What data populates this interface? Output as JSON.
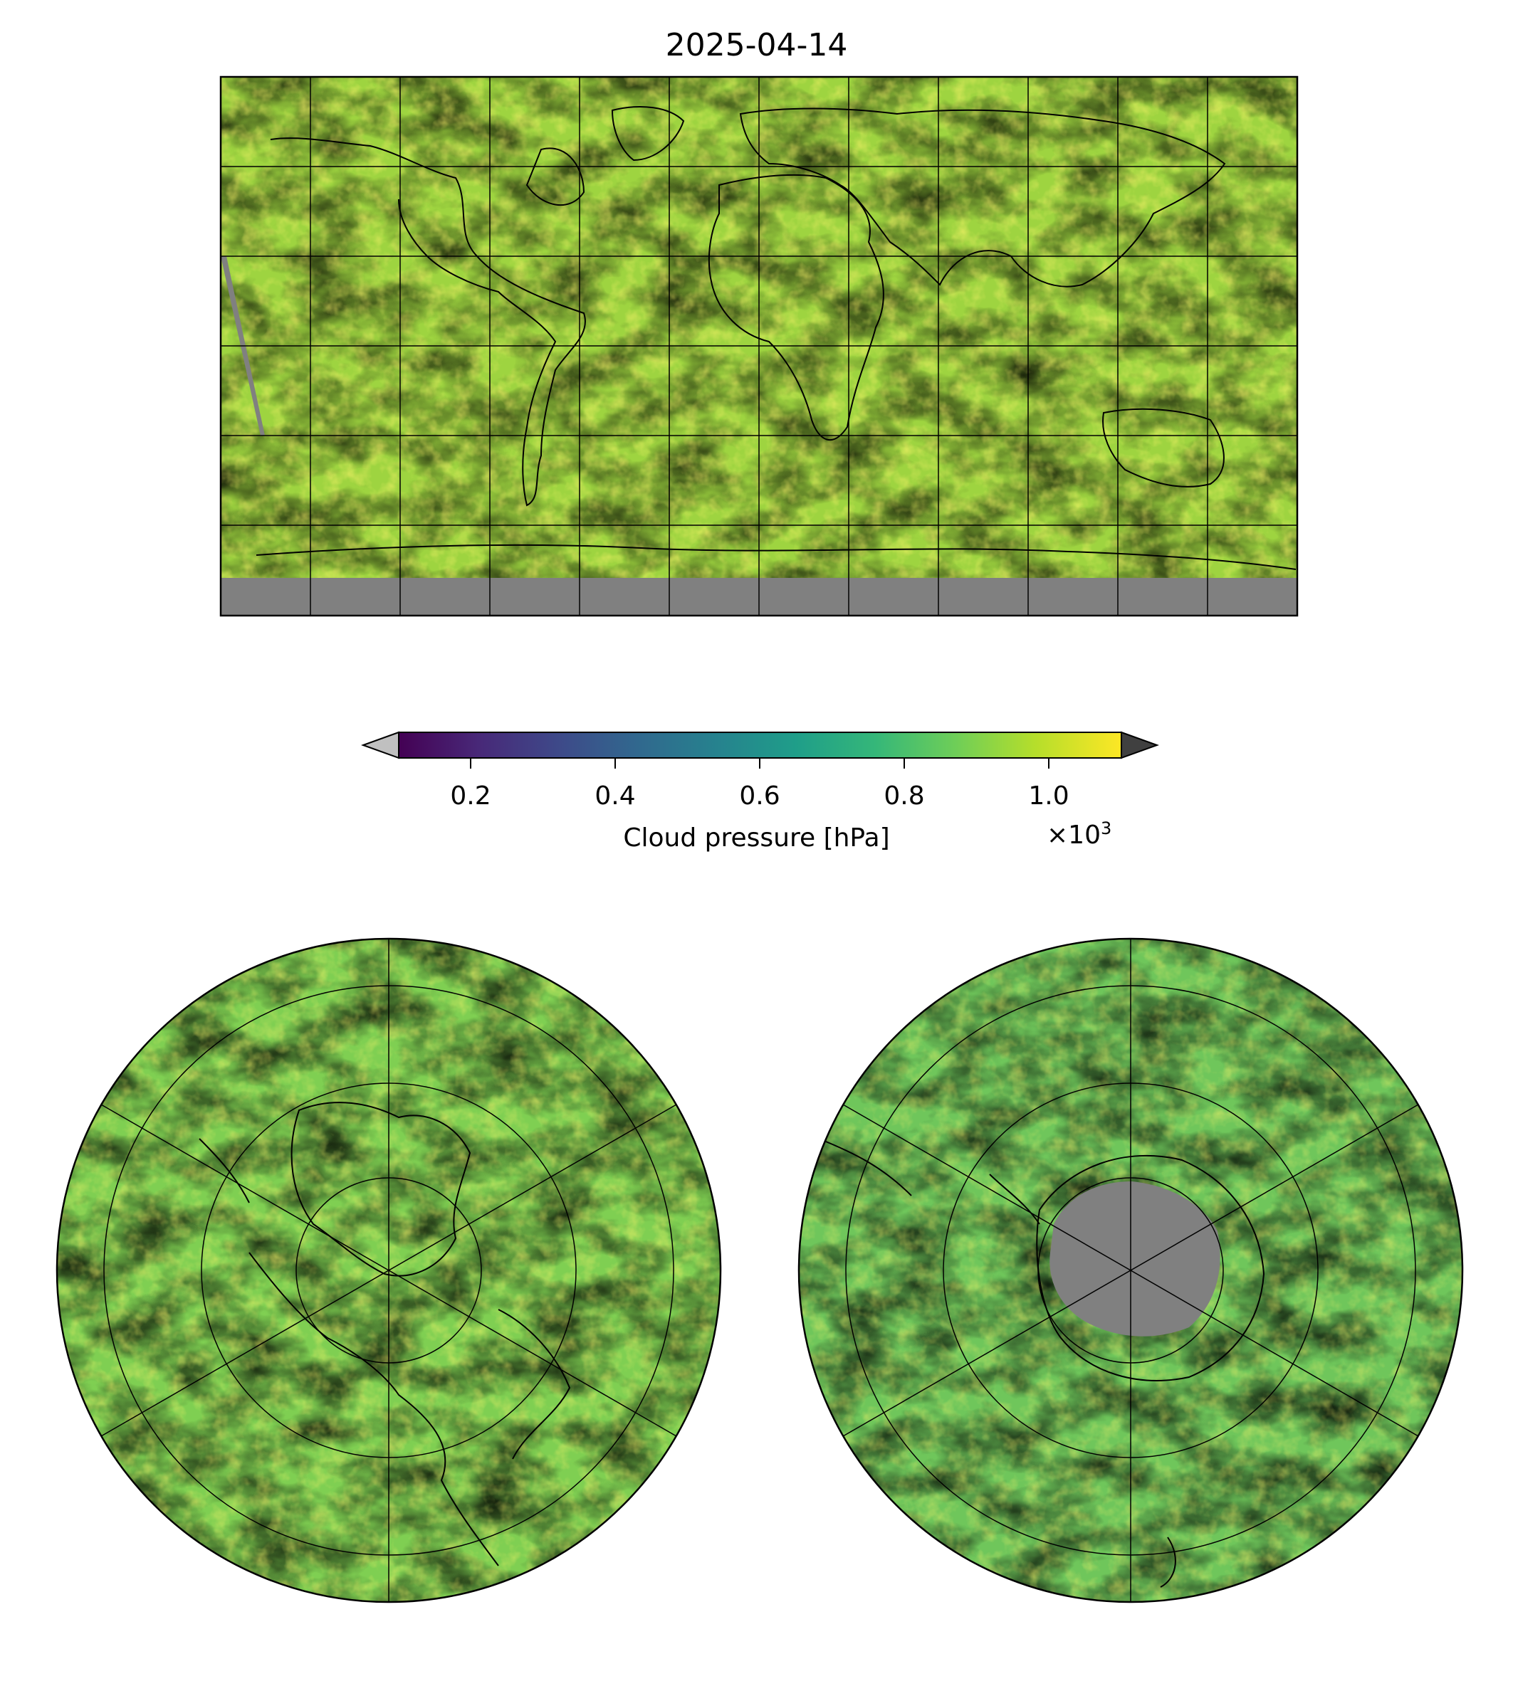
{
  "figure": {
    "title": "2025-04-14"
  },
  "colorbar": {
    "label": "Cloud pressure [hPa]",
    "multiplier_base": "×10",
    "multiplier_exp": "3",
    "ticks": [
      "0.2",
      "0.4",
      "0.6",
      "0.8",
      "1.0"
    ],
    "tick_values": [
      0.2,
      0.4,
      0.6,
      0.8,
      1.0
    ],
    "range": [
      0.1,
      1.1
    ],
    "extend": "both",
    "under_color": "#c0c0c0",
    "over_color": "#404040",
    "colormap": "viridis",
    "colormap_stops": [
      "#440154",
      "#482878",
      "#3e4989",
      "#31688e",
      "#26828e",
      "#1f9e89",
      "#35b779",
      "#6ece58",
      "#b5de2b",
      "#fde725"
    ]
  },
  "panels": {
    "global": {
      "projection": "plate-carree",
      "gridlines": "30 degree",
      "missing_color": "#808080"
    },
    "north_polar": {
      "projection": "north-polar-stereographic",
      "gridlines": "lat rings and meridians"
    },
    "south_polar": {
      "projection": "south-polar-stereographic",
      "gridlines": "lat rings and meridians",
      "missing_color": "#808080"
    }
  }
}
